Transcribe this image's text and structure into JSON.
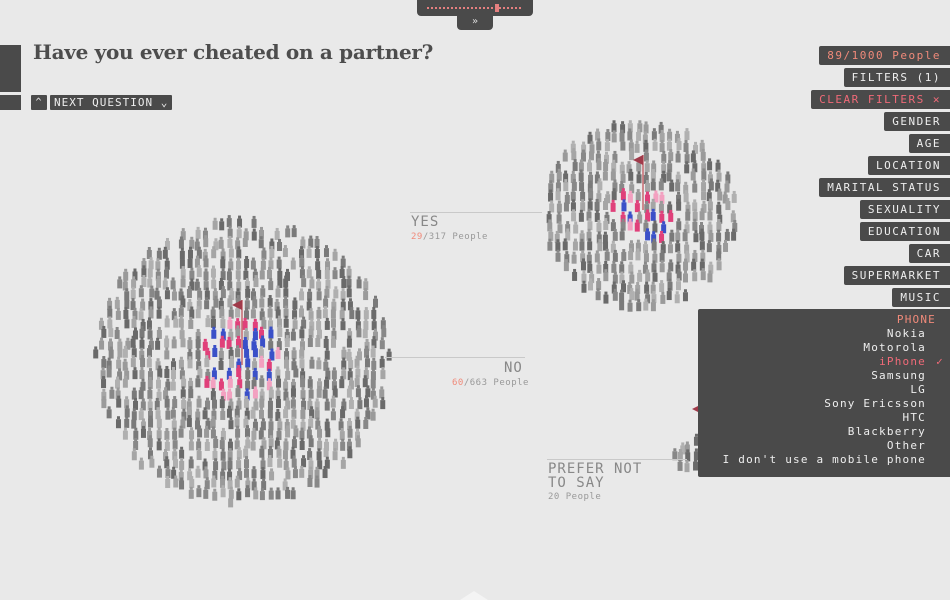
{
  "header": {
    "question": "Have you ever cheated on a partner?",
    "next_label": "NEXT QUESTION",
    "up_icon": "chevron-up-icon",
    "down_icon": "chevron-down-icon",
    "expand_icon": "double-chevron-down-icon"
  },
  "filters": {
    "count_label": "89/1000 People",
    "filters_label": "FILTERS (1)",
    "clear_label": "CLEAR FILTERS ✕",
    "items": [
      "GENDER",
      "AGE",
      "LOCATION",
      "MARITAL STATUS",
      "SEXUALITY",
      "EDUCATION",
      "CAR",
      "SUPERMARKET",
      "MUSIC"
    ]
  },
  "phone": {
    "title": "PHONE",
    "options": [
      "Nokia",
      "Motorola",
      "iPhone",
      "Samsung",
      "LG",
      "Sony Ericsson",
      "HTC",
      "Blackberry",
      "Other",
      "I don't use a mobile phone"
    ],
    "selected": "iPhone",
    "check": "✓"
  },
  "groups": {
    "yes": {
      "label": "YES",
      "highlight": "29",
      "rest": "/317 People"
    },
    "no": {
      "label": "NO",
      "highlight": "60",
      "rest": "/663 People"
    },
    "prefer": {
      "label_line1": "PREFER NOT",
      "label_line2": "TO SAY",
      "count": "20 People"
    }
  },
  "colors": {
    "panel": "#4a4a4a",
    "accent": "#f08a7a",
    "pink": "#e0407a",
    "blue": "#3a50c8",
    "flag": "#a03a4a"
  }
}
